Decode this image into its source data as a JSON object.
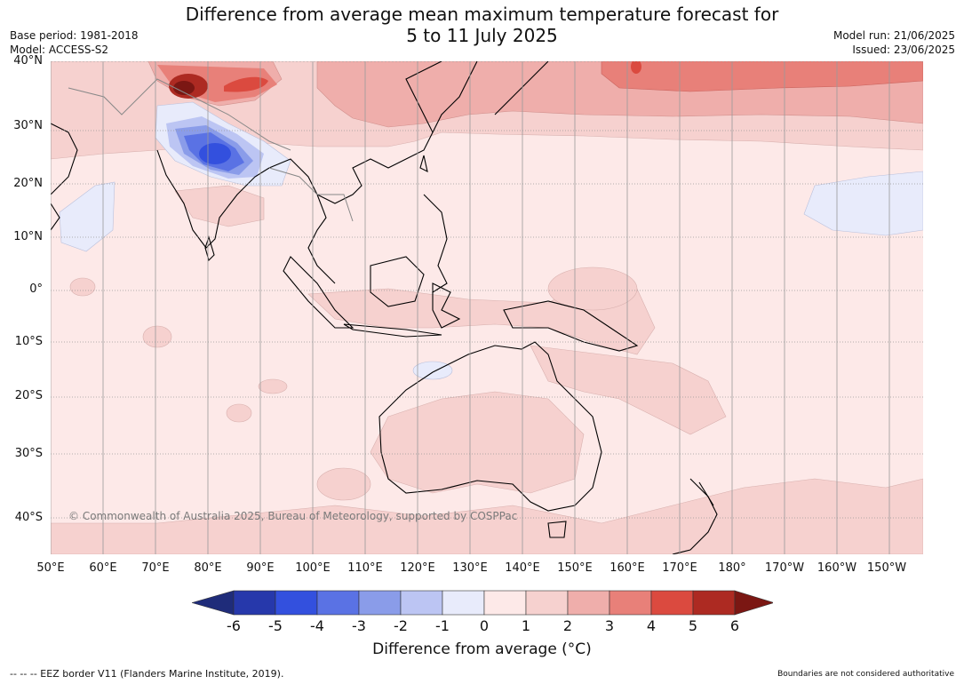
{
  "title_line1": "Difference from average mean maximum temperature forecast for",
  "title_line2": "5 to 11 July 2025",
  "base_period": "Base period: 1981-2018",
  "model": "Model: ACCESS-S2",
  "model_run": "Model run: 21/06/2025",
  "issued": "Issued: 23/06/2025",
  "latitude_labels": [
    "40°N",
    "30°N",
    "20°N",
    "10°N",
    "0°",
    "10°S",
    "20°S",
    "30°S",
    "40°S"
  ],
  "longitude_labels": [
    "50°E",
    "60°E",
    "70°E",
    "80°E",
    "90°E",
    "100°E",
    "110°E",
    "120°E",
    "130°E",
    "140°E",
    "150°E",
    "160°E",
    "170°E",
    "180°",
    "170°W",
    "160°W",
    "150°W"
  ],
  "copyright": "© Commonwealth of Australia 2025, Bureau of Meteorology, supported by COSPPac",
  "colorbar": {
    "ticks": [
      "-6",
      "-5",
      "-4",
      "-3",
      "-2",
      "-1",
      "0",
      "1",
      "2",
      "3",
      "4",
      "5",
      "6"
    ],
    "label": "Difference from average (°C)",
    "colors": [
      "#1f2c7a",
      "#2638ab",
      "#3350de",
      "#5a72e4",
      "#8a9ce9",
      "#bcc5f3",
      "#e8ebfb",
      "#fde9e8",
      "#f6d1cf",
      "#efaeab",
      "#e88079",
      "#db4a3f",
      "#ad2a22",
      "#7b1713"
    ]
  },
  "footer_left": "--  --  -- EEZ border V11 (Flanders Marine Institute, 2019).",
  "footer_right": "Boundaries are not considered authoritative"
}
